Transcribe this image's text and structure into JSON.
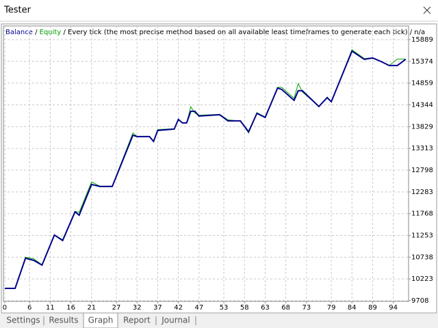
{
  "window": {
    "title": "Tester"
  },
  "tabs": [
    "Settings",
    "Results",
    "Graph",
    "Report",
    "Journal"
  ],
  "active_tab": 2,
  "chart_data": {
    "type": "line",
    "separator": "/",
    "subtitle": "Every tick (the most precise method based on all available least timeframes to generate each tick)",
    "note": "n/a",
    "x": [
      0,
      2.5,
      5,
      7,
      9,
      12,
      14,
      17,
      18,
      21,
      23,
      26,
      31,
      32,
      35,
      36,
      37,
      41,
      42,
      43,
      44,
      45,
      46,
      47,
      52,
      54,
      57,
      59,
      61,
      63,
      66,
      67,
      70,
      71,
      72,
      76,
      78,
      79,
      84,
      87,
      89,
      91,
      93,
      95,
      97
    ],
    "series": [
      {
        "name": "Equity",
        "color": "#00a000",
        "width": 1,
        "values": [
          10000,
          10000,
          10738,
          10700,
          10560,
          11270,
          11150,
          11820,
          11800,
          12520,
          12420,
          12420,
          13680,
          13600,
          13594,
          13480,
          13760,
          13780,
          14000,
          13917,
          13917,
          14300,
          14150,
          14100,
          14120,
          13990,
          13960,
          13680,
          14160,
          14060,
          14760,
          14760,
          14500,
          14850,
          14650,
          14306,
          14530,
          14419,
          15650,
          15440,
          15460,
          15374,
          15277,
          15430,
          15430
        ]
      },
      {
        "name": "Balance",
        "color": "#00008b",
        "width": 2,
        "values": [
          10000,
          10000,
          10712,
          10663,
          10550,
          11262,
          11133,
          11813,
          11732,
          12460,
          12412,
          12412,
          13626,
          13594,
          13594,
          13480,
          13740,
          13772,
          14000,
          13917,
          13917,
          14192,
          14192,
          14079,
          14111,
          13966,
          13966,
          13707,
          14144,
          14047,
          14743,
          14711,
          14452,
          14679,
          14679,
          14306,
          14516,
          14419,
          15617,
          15423,
          15455,
          15374,
          15277,
          15277,
          15423
        ]
      }
    ],
    "xlim": [
      -0.33,
      97.7
    ],
    "xticks": [
      0,
      6,
      11,
      16,
      21,
      27,
      32,
      37,
      42,
      47,
      53,
      58,
      63,
      68,
      73,
      79,
      84,
      89,
      94
    ],
    "ylim": [
      9692,
      16213
    ],
    "yticks": [
      9708,
      10223,
      10738,
      11253,
      11768,
      12283,
      12798,
      13313,
      13829,
      14344,
      14859,
      15374,
      15889
    ],
    "grid": true
  }
}
